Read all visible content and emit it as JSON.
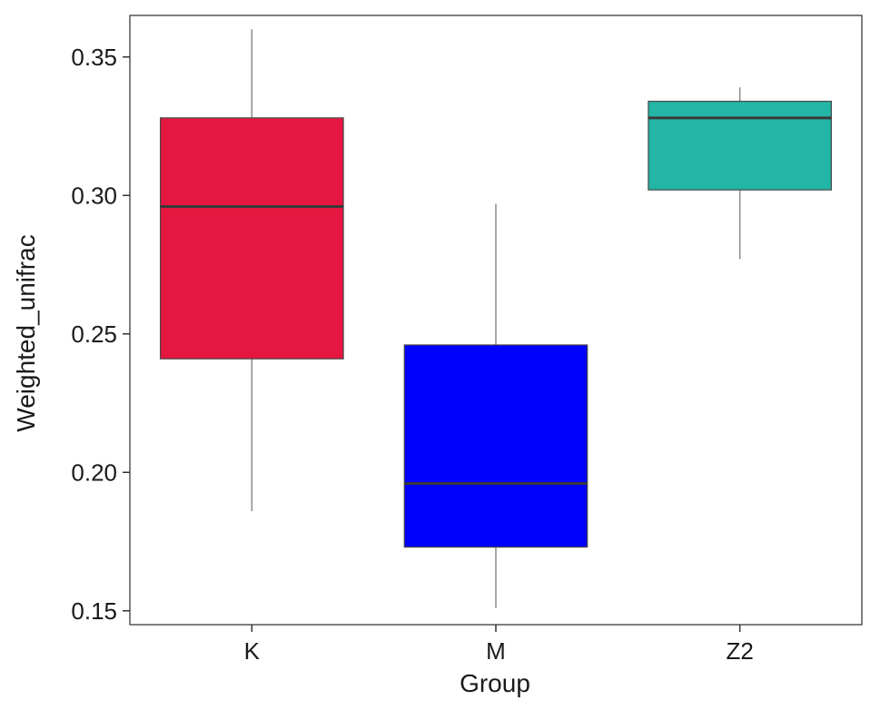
{
  "chart_data": {
    "type": "boxplot",
    "xlabel": "Group",
    "ylabel": "Weighted_unifrac",
    "ylim": [
      0.145,
      0.365
    ],
    "yticks": [
      0.15,
      0.2,
      0.25,
      0.3,
      0.35
    ],
    "ytick_labels": [
      "0.15",
      "0.20",
      "0.25",
      "0.30",
      "0.35"
    ],
    "categories": [
      "K",
      "M",
      "Z2"
    ],
    "grid": false,
    "legend": "none",
    "boxes": [
      {
        "group": "K",
        "whisker_low": 0.186,
        "q1": 0.241,
        "median": 0.296,
        "q3": 0.328,
        "whisker_high": 0.36,
        "color": "#E5163F"
      },
      {
        "group": "M",
        "whisker_low": 0.151,
        "q1": 0.173,
        "median": 0.196,
        "q3": 0.246,
        "whisker_high": 0.297,
        "color": "#0000FF"
      },
      {
        "group": "Z2",
        "whisker_low": 0.277,
        "q1": 0.302,
        "median": 0.328,
        "q3": 0.334,
        "whisker_high": 0.339,
        "color": "#23B5A6"
      }
    ]
  }
}
